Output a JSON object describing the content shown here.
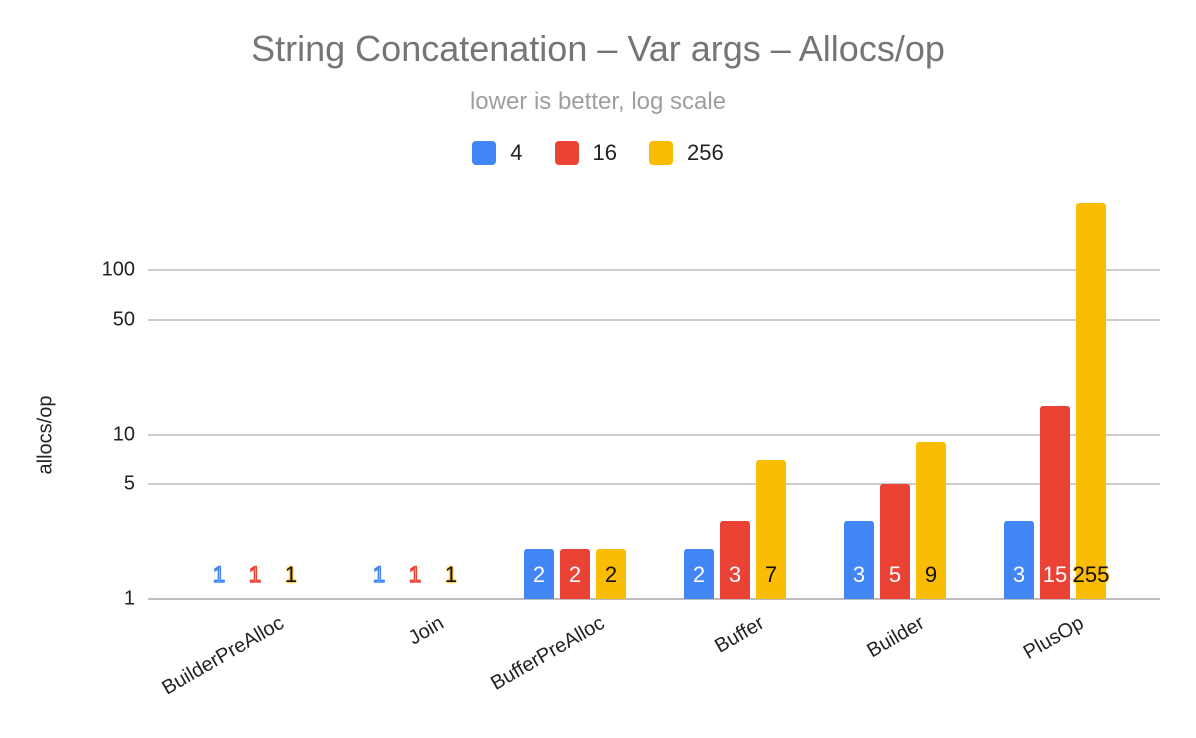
{
  "chart_data": {
    "type": "bar",
    "title": "String Concatenation – Var args – Allocs/op",
    "subtitle": "lower is better, log scale",
    "xlabel": "",
    "ylabel": "allocs/op",
    "yscale": "log",
    "ylim": [
      1,
      300
    ],
    "yticks": [
      1,
      5,
      10,
      50,
      100
    ],
    "grid": true,
    "legend_position": "top",
    "categories": [
      "BuilderPreAlloc",
      "Join",
      "BufferPreAlloc",
      "Buffer",
      "Builder",
      "PlusOp"
    ],
    "series": [
      {
        "name": "4",
        "color": "#4285f4",
        "values": [
          1,
          1,
          2,
          2,
          3,
          3
        ]
      },
      {
        "name": "16",
        "color": "#ea4335",
        "values": [
          1,
          1,
          2,
          3,
          5,
          15
        ]
      },
      {
        "name": "256",
        "color": "#fbbc04",
        "values": [
          1,
          1,
          2,
          7,
          9,
          255
        ]
      }
    ]
  },
  "header": {
    "title": "String Concatenation – Var args – Allocs/op",
    "subtitle": "lower is better, log scale"
  },
  "legend": [
    {
      "label": "4",
      "color": "#4285f4"
    },
    {
      "label": "16",
      "color": "#ea4335"
    },
    {
      "label": "256",
      "color": "#fbbc04"
    }
  ],
  "axis": {
    "ylabel": "allocs/op",
    "yticks": [
      "100",
      "50",
      "10",
      "5",
      "1"
    ]
  }
}
